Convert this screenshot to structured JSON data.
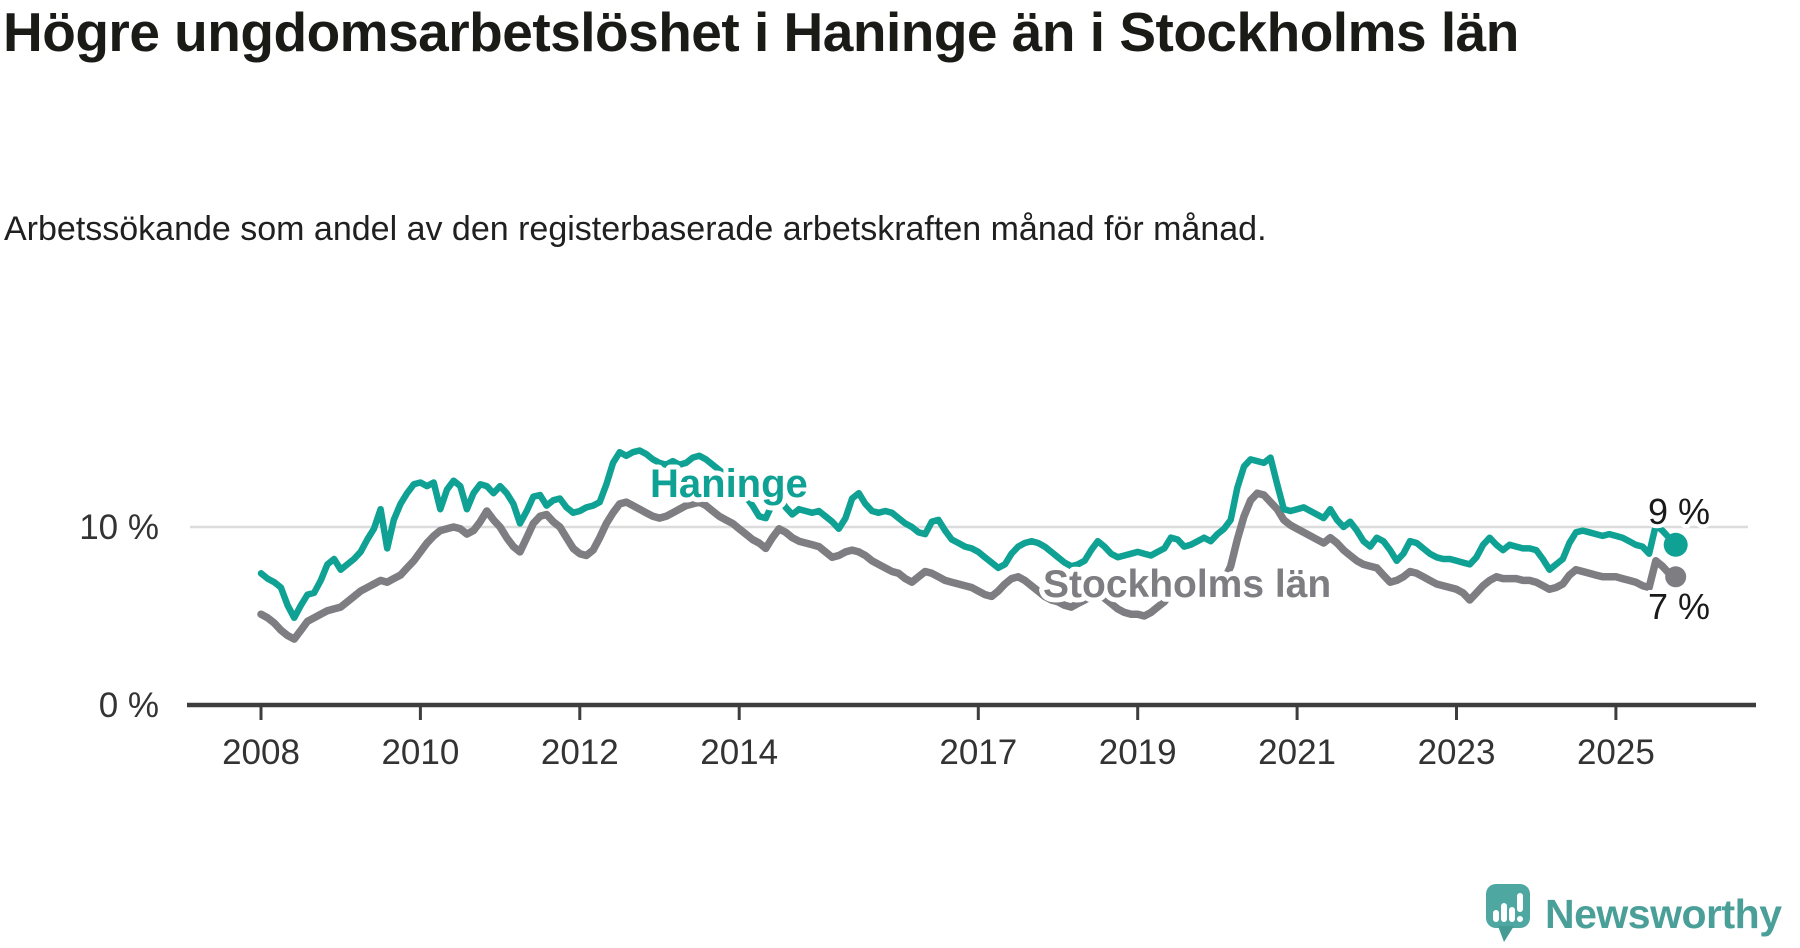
{
  "header": {
    "title": "Högre ungdomsarbetslöshet i Haninge än i Stockholms län",
    "subtitle": "Arbetssökande som andel av den registerbaserade arbetskraften månad för månad."
  },
  "footer": {
    "brand": "Newsworthy"
  },
  "colors": {
    "haninge": "#0fa193",
    "stockholm": "#7d7d82",
    "logo_teal": "#4ea7a1",
    "wordmark_teal": "#4a9f99",
    "gridline": "#dcdcdc",
    "axis": "#3d3d3d"
  },
  "chart_data": {
    "type": "line",
    "title": "Högre ungdomsarbetslöshet i Haninge än i Stockholms län",
    "subtitle": "Arbetssökande som andel av den registerbaserade arbetskraften månad för månad.",
    "unit": "%",
    "frequency": "monthly",
    "x_start": "2008-01",
    "x_end": "2025-10",
    "grid": "horizontal-10-only",
    "legend_position": "inline-labels",
    "ylim": [
      0,
      16
    ],
    "x_ticks": [
      2008,
      2010,
      2012,
      2014,
      2017,
      2019,
      2021,
      2023,
      2025
    ],
    "y_ticks": [
      {
        "value": 0,
        "label": "0 %"
      },
      {
        "value": 10,
        "label": "10 %"
      }
    ],
    "series": [
      {
        "name": "Haninge",
        "color": "#0fa193",
        "end_label": "9 %",
        "end_value": 9,
        "values": [
          7.4,
          7.1,
          6.9,
          6.6,
          5.6,
          4.9,
          5.6,
          6.2,
          6.3,
          7.0,
          7.9,
          8.2,
          7.6,
          7.9,
          8.2,
          8.6,
          9.3,
          9.9,
          11.0,
          8.8,
          10.4,
          11.3,
          11.9,
          12.4,
          12.5,
          12.3,
          12.5,
          11.0,
          12.1,
          12.6,
          12.3,
          11.0,
          11.9,
          12.4,
          12.3,
          11.9,
          12.3,
          11.9,
          11.3,
          10.2,
          10.9,
          11.7,
          11.8,
          11.2,
          11.5,
          11.6,
          11.1,
          10.8,
          10.9,
          11.1,
          11.2,
          11.4,
          12.4,
          13.6,
          14.2,
          14.0,
          14.2,
          14.3,
          14.1,
          13.8,
          13.6,
          13.5,
          13.7,
          13.5,
          13.6,
          13.9,
          14.0,
          13.8,
          13.5,
          13.2,
          12.9,
          12.5,
          12.1,
          11.7,
          11.2,
          10.6,
          10.5,
          11.3,
          11.7,
          11.1,
          10.7,
          11.0,
          10.9,
          10.8,
          10.9,
          10.6,
          10.3,
          9.9,
          10.5,
          11.6,
          11.9,
          11.3,
          10.9,
          10.8,
          10.9,
          10.8,
          10.5,
          10.2,
          10.0,
          9.7,
          9.6,
          10.3,
          10.4,
          9.8,
          9.3,
          9.1,
          8.9,
          8.8,
          8.6,
          8.3,
          8.0,
          7.7,
          7.9,
          8.5,
          8.9,
          9.1,
          9.2,
          9.1,
          8.9,
          8.6,
          8.3,
          8.0,
          7.8,
          7.9,
          8.1,
          8.7,
          9.2,
          8.9,
          8.5,
          8.3,
          8.4,
          8.5,
          8.6,
          8.5,
          8.4,
          8.6,
          8.8,
          9.4,
          9.3,
          8.9,
          9.0,
          9.2,
          9.4,
          9.2,
          9.6,
          9.9,
          10.4,
          12.2,
          13.4,
          13.8,
          13.7,
          13.6,
          13.9,
          12.4,
          11.0,
          10.9,
          11.0,
          11.1,
          10.9,
          10.7,
          10.5,
          11.0,
          10.4,
          10.0,
          10.3,
          9.8,
          9.2,
          8.9,
          9.4,
          9.2,
          8.7,
          8.1,
          8.5,
          9.2,
          9.1,
          8.8,
          8.5,
          8.3,
          8.2,
          8.2,
          8.1,
          8.0,
          7.9,
          8.3,
          9.0,
          9.4,
          9.0,
          8.7,
          9.0,
          8.9,
          8.8,
          8.8,
          8.7,
          8.2,
          7.6,
          7.9,
          8.2,
          9.1,
          9.7,
          9.8,
          9.7,
          9.6,
          9.5,
          9.6,
          9.5,
          9.4,
          9.2,
          9.0,
          8.9,
          8.5,
          10.1,
          9.8,
          9.4,
          9.0
        ]
      },
      {
        "name": "Stockholms län",
        "color": "#7d7d82",
        "end_label": "7 %",
        "end_value": 7,
        "values": [
          5.1,
          4.9,
          4.6,
          4.2,
          3.9,
          3.7,
          4.2,
          4.7,
          4.9,
          5.1,
          5.3,
          5.4,
          5.5,
          5.8,
          6.1,
          6.4,
          6.6,
          6.8,
          7.0,
          6.9,
          7.1,
          7.3,
          7.7,
          8.1,
          8.6,
          9.1,
          9.5,
          9.8,
          9.9,
          10.0,
          9.9,
          9.6,
          9.8,
          10.3,
          10.9,
          10.4,
          10.0,
          9.4,
          8.9,
          8.6,
          9.4,
          10.2,
          10.6,
          10.7,
          10.3,
          10.0,
          9.4,
          8.8,
          8.5,
          8.4,
          8.7,
          9.4,
          10.2,
          10.8,
          11.3,
          11.4,
          11.2,
          11.0,
          10.8,
          10.6,
          10.5,
          10.6,
          10.8,
          11.0,
          11.2,
          11.3,
          11.4,
          11.2,
          10.9,
          10.6,
          10.4,
          10.2,
          9.9,
          9.6,
          9.3,
          9.1,
          8.8,
          9.4,
          9.9,
          9.7,
          9.4,
          9.2,
          9.1,
          9.0,
          8.9,
          8.6,
          8.3,
          8.4,
          8.6,
          8.7,
          8.6,
          8.4,
          8.1,
          7.9,
          7.7,
          7.5,
          7.4,
          7.1,
          6.9,
          7.2,
          7.5,
          7.4,
          7.2,
          7.0,
          6.9,
          6.8,
          6.7,
          6.6,
          6.4,
          6.2,
          6.1,
          6.4,
          6.8,
          7.1,
          7.2,
          7.0,
          6.7,
          6.4,
          6.1,
          5.9,
          5.8,
          5.6,
          5.5,
          5.7,
          5.9,
          6.1,
          6.2,
          6.0,
          5.7,
          5.4,
          5.2,
          5.1,
          5.1,
          5.0,
          5.2,
          5.5,
          5.8,
          6.3,
          6.5,
          6.3,
          6.2,
          6.3,
          6.4,
          6.5,
          6.8,
          7.0,
          7.8,
          9.3,
          10.6,
          11.5,
          11.9,
          11.8,
          11.4,
          11.0,
          10.4,
          10.1,
          9.9,
          9.7,
          9.5,
          9.3,
          9.1,
          9.4,
          9.1,
          8.7,
          8.4,
          8.1,
          7.9,
          7.8,
          7.7,
          7.3,
          6.9,
          7.0,
          7.2,
          7.5,
          7.4,
          7.2,
          7.0,
          6.8,
          6.7,
          6.6,
          6.5,
          6.3,
          5.9,
          6.3,
          6.7,
          7.0,
          7.2,
          7.1,
          7.1,
          7.1,
          7.0,
          7.0,
          6.9,
          6.7,
          6.5,
          6.6,
          6.8,
          7.3,
          7.6,
          7.5,
          7.4,
          7.3,
          7.2,
          7.2,
          7.2,
          7.1,
          7.0,
          6.9,
          6.7,
          6.6,
          8.1,
          7.8,
          7.4,
          7.2
        ]
      }
    ]
  }
}
